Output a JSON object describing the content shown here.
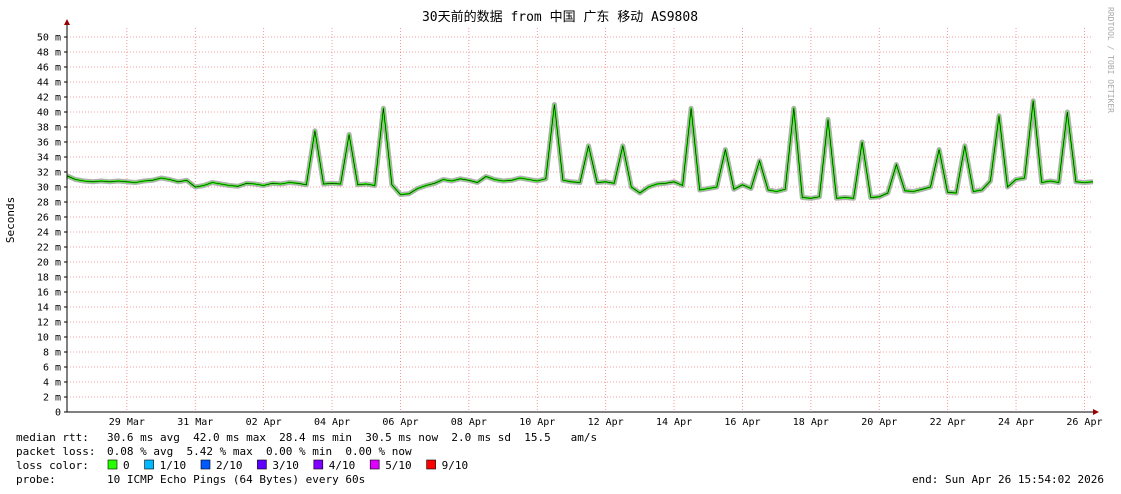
{
  "chart_data": {
    "type": "line",
    "title": "30天前的数据 from 中国 广东 移动 AS9808",
    "y_label": "Seconds",
    "watermark": "RRDTOOL / TOBI OETIKER",
    "categories": [
      null,
      null,
      null,
      null,
      null,
      null,
      null,
      "29 Mar",
      null,
      null,
      null,
      null,
      null,
      null,
      null,
      "31 Mar",
      null,
      null,
      null,
      null,
      null,
      null,
      null,
      "02 Apr",
      null,
      null,
      null,
      null,
      null,
      null,
      null,
      "04 Apr",
      null,
      null,
      null,
      null,
      null,
      null,
      null,
      "06 Apr",
      null,
      null,
      null,
      null,
      null,
      null,
      null,
      "08 Apr",
      null,
      null,
      null,
      null,
      null,
      null,
      null,
      "10 Apr",
      null,
      null,
      null,
      null,
      null,
      null,
      null,
      "12 Apr",
      null,
      null,
      null,
      null,
      null,
      null,
      null,
      "14 Apr",
      null,
      null,
      null,
      null,
      null,
      null,
      null,
      "16 Apr",
      null,
      null,
      null,
      null,
      null,
      null,
      null,
      "18 Apr",
      null,
      null,
      null,
      null,
      null,
      null,
      null,
      "20 Apr",
      null,
      null,
      null,
      null,
      null,
      null,
      null,
      "22 Apr",
      null,
      null,
      null,
      null,
      null,
      null,
      null,
      "24 Apr",
      null,
      null,
      null,
      null,
      null,
      null,
      null,
      "26 Apr",
      null
    ],
    "series": [
      {
        "name": "median rtt",
        "color": "#26ff00",
        "values": [
          0.0315,
          0.031,
          0.0308,
          0.0307,
          0.0308,
          0.0307,
          0.0308,
          0.0307,
          0.0306,
          0.0308,
          0.0309,
          0.0312,
          0.031,
          0.0307,
          0.0309,
          0.03,
          0.0302,
          0.0306,
          0.0304,
          0.0302,
          0.0301,
          0.0305,
          0.0304,
          0.0302,
          0.0305,
          0.0304,
          0.0306,
          0.0305,
          0.0303,
          0.0375,
          0.0304,
          0.0305,
          0.0304,
          0.037,
          0.0303,
          0.0304,
          0.0302,
          0.0405,
          0.0303,
          0.029,
          0.0291,
          0.0298,
          0.0302,
          0.0305,
          0.031,
          0.0308,
          0.0311,
          0.0309,
          0.0306,
          0.0314,
          0.031,
          0.0308,
          0.0309,
          0.0312,
          0.031,
          0.0308,
          0.0311,
          0.041,
          0.0309,
          0.0307,
          0.0306,
          0.0355,
          0.0306,
          0.0307,
          0.0305,
          0.0355,
          0.03,
          0.0292,
          0.03,
          0.0304,
          0.0305,
          0.0307,
          0.0302,
          0.0405,
          0.0296,
          0.0298,
          0.03,
          0.035,
          0.0297,
          0.0303,
          0.0298,
          0.0335,
          0.0296,
          0.0294,
          0.0297,
          0.0405,
          0.0286,
          0.0285,
          0.0287,
          0.039,
          0.0285,
          0.0286,
          0.0285,
          0.036,
          0.0286,
          0.0287,
          0.0292,
          0.033,
          0.0295,
          0.0294,
          0.0297,
          0.03,
          0.035,
          0.0293,
          0.0292,
          0.0355,
          0.0294,
          0.0296,
          0.0308,
          0.0395,
          0.03,
          0.031,
          0.0312,
          0.0415,
          0.0306,
          0.0308,
          0.0306,
          0.04,
          0.0307,
          0.0306,
          0.0307
        ]
      }
    ],
    "ylim": [
      0,
      0.0512
    ],
    "yticks": [
      0,
      {
        "value": 0.002,
        "label": "2 m"
      },
      {
        "value": 0.004,
        "label": "4 m"
      },
      {
        "value": 0.006,
        "label": "6 m"
      },
      {
        "value": 0.008,
        "label": "8 m"
      },
      {
        "value": 0.01,
        "label": "10 m"
      },
      {
        "value": 0.012,
        "label": "12 m"
      },
      {
        "value": 0.014,
        "label": "14 m"
      },
      {
        "value": 0.016,
        "label": "16 m"
      },
      {
        "value": 0.018,
        "label": "18 m"
      },
      {
        "value": 0.02,
        "label": "20 m"
      },
      {
        "value": 0.022,
        "label": "22 m"
      },
      {
        "value": 0.024,
        "label": "24 m"
      },
      {
        "value": 0.026,
        "label": "26 m"
      },
      {
        "value": 0.028,
        "label": "28 m"
      },
      {
        "value": 0.03,
        "label": "30 m"
      },
      {
        "value": 0.032,
        "label": "32 m"
      },
      {
        "value": 0.034,
        "label": "34 m"
      },
      {
        "value": 0.036,
        "label": "36 m"
      },
      {
        "value": 0.038,
        "label": "38 m"
      },
      {
        "value": 0.04,
        "label": "40 m"
      },
      {
        "value": 0.042,
        "label": "42 m"
      },
      {
        "value": 0.044,
        "label": "44 m"
      },
      {
        "value": 0.046,
        "label": "46 m"
      },
      {
        "value": 0.048,
        "label": "48 m"
      },
      {
        "value": 0.05,
        "label": "50 m"
      }
    ],
    "grid": true,
    "stats": [
      {
        "label": "median rtt:",
        "text": "30.6 ms avg  42.0 ms max  28.4 ms min  30.5 ms now  2.0 ms sd  15.5   am/s"
      },
      {
        "label": "packet loss:",
        "text": "0.08 % avg  5.42 % max  0.00 % min  0.00 % now"
      }
    ],
    "loss_legend": {
      "label": "loss color:",
      "items": [
        {
          "name": "0",
          "color": "#26ff00"
        },
        {
          "name": "1/10",
          "color": "#00b8ff"
        },
        {
          "name": "2/10",
          "color": "#0059ff"
        },
        {
          "name": "3/10",
          "color": "#5e00ff"
        },
        {
          "name": "4/10",
          "color": "#7e00ff"
        },
        {
          "name": "5/10",
          "color": "#dd00ff"
        },
        {
          "name": "9/10",
          "color": "#ff0000"
        }
      ]
    },
    "probe": {
      "label": "probe:",
      "text": "10 ICMP Echo Pings (64 Bytes) every 60s"
    },
    "end": "end: Sun Apr 26 15:54:02 2026"
  }
}
